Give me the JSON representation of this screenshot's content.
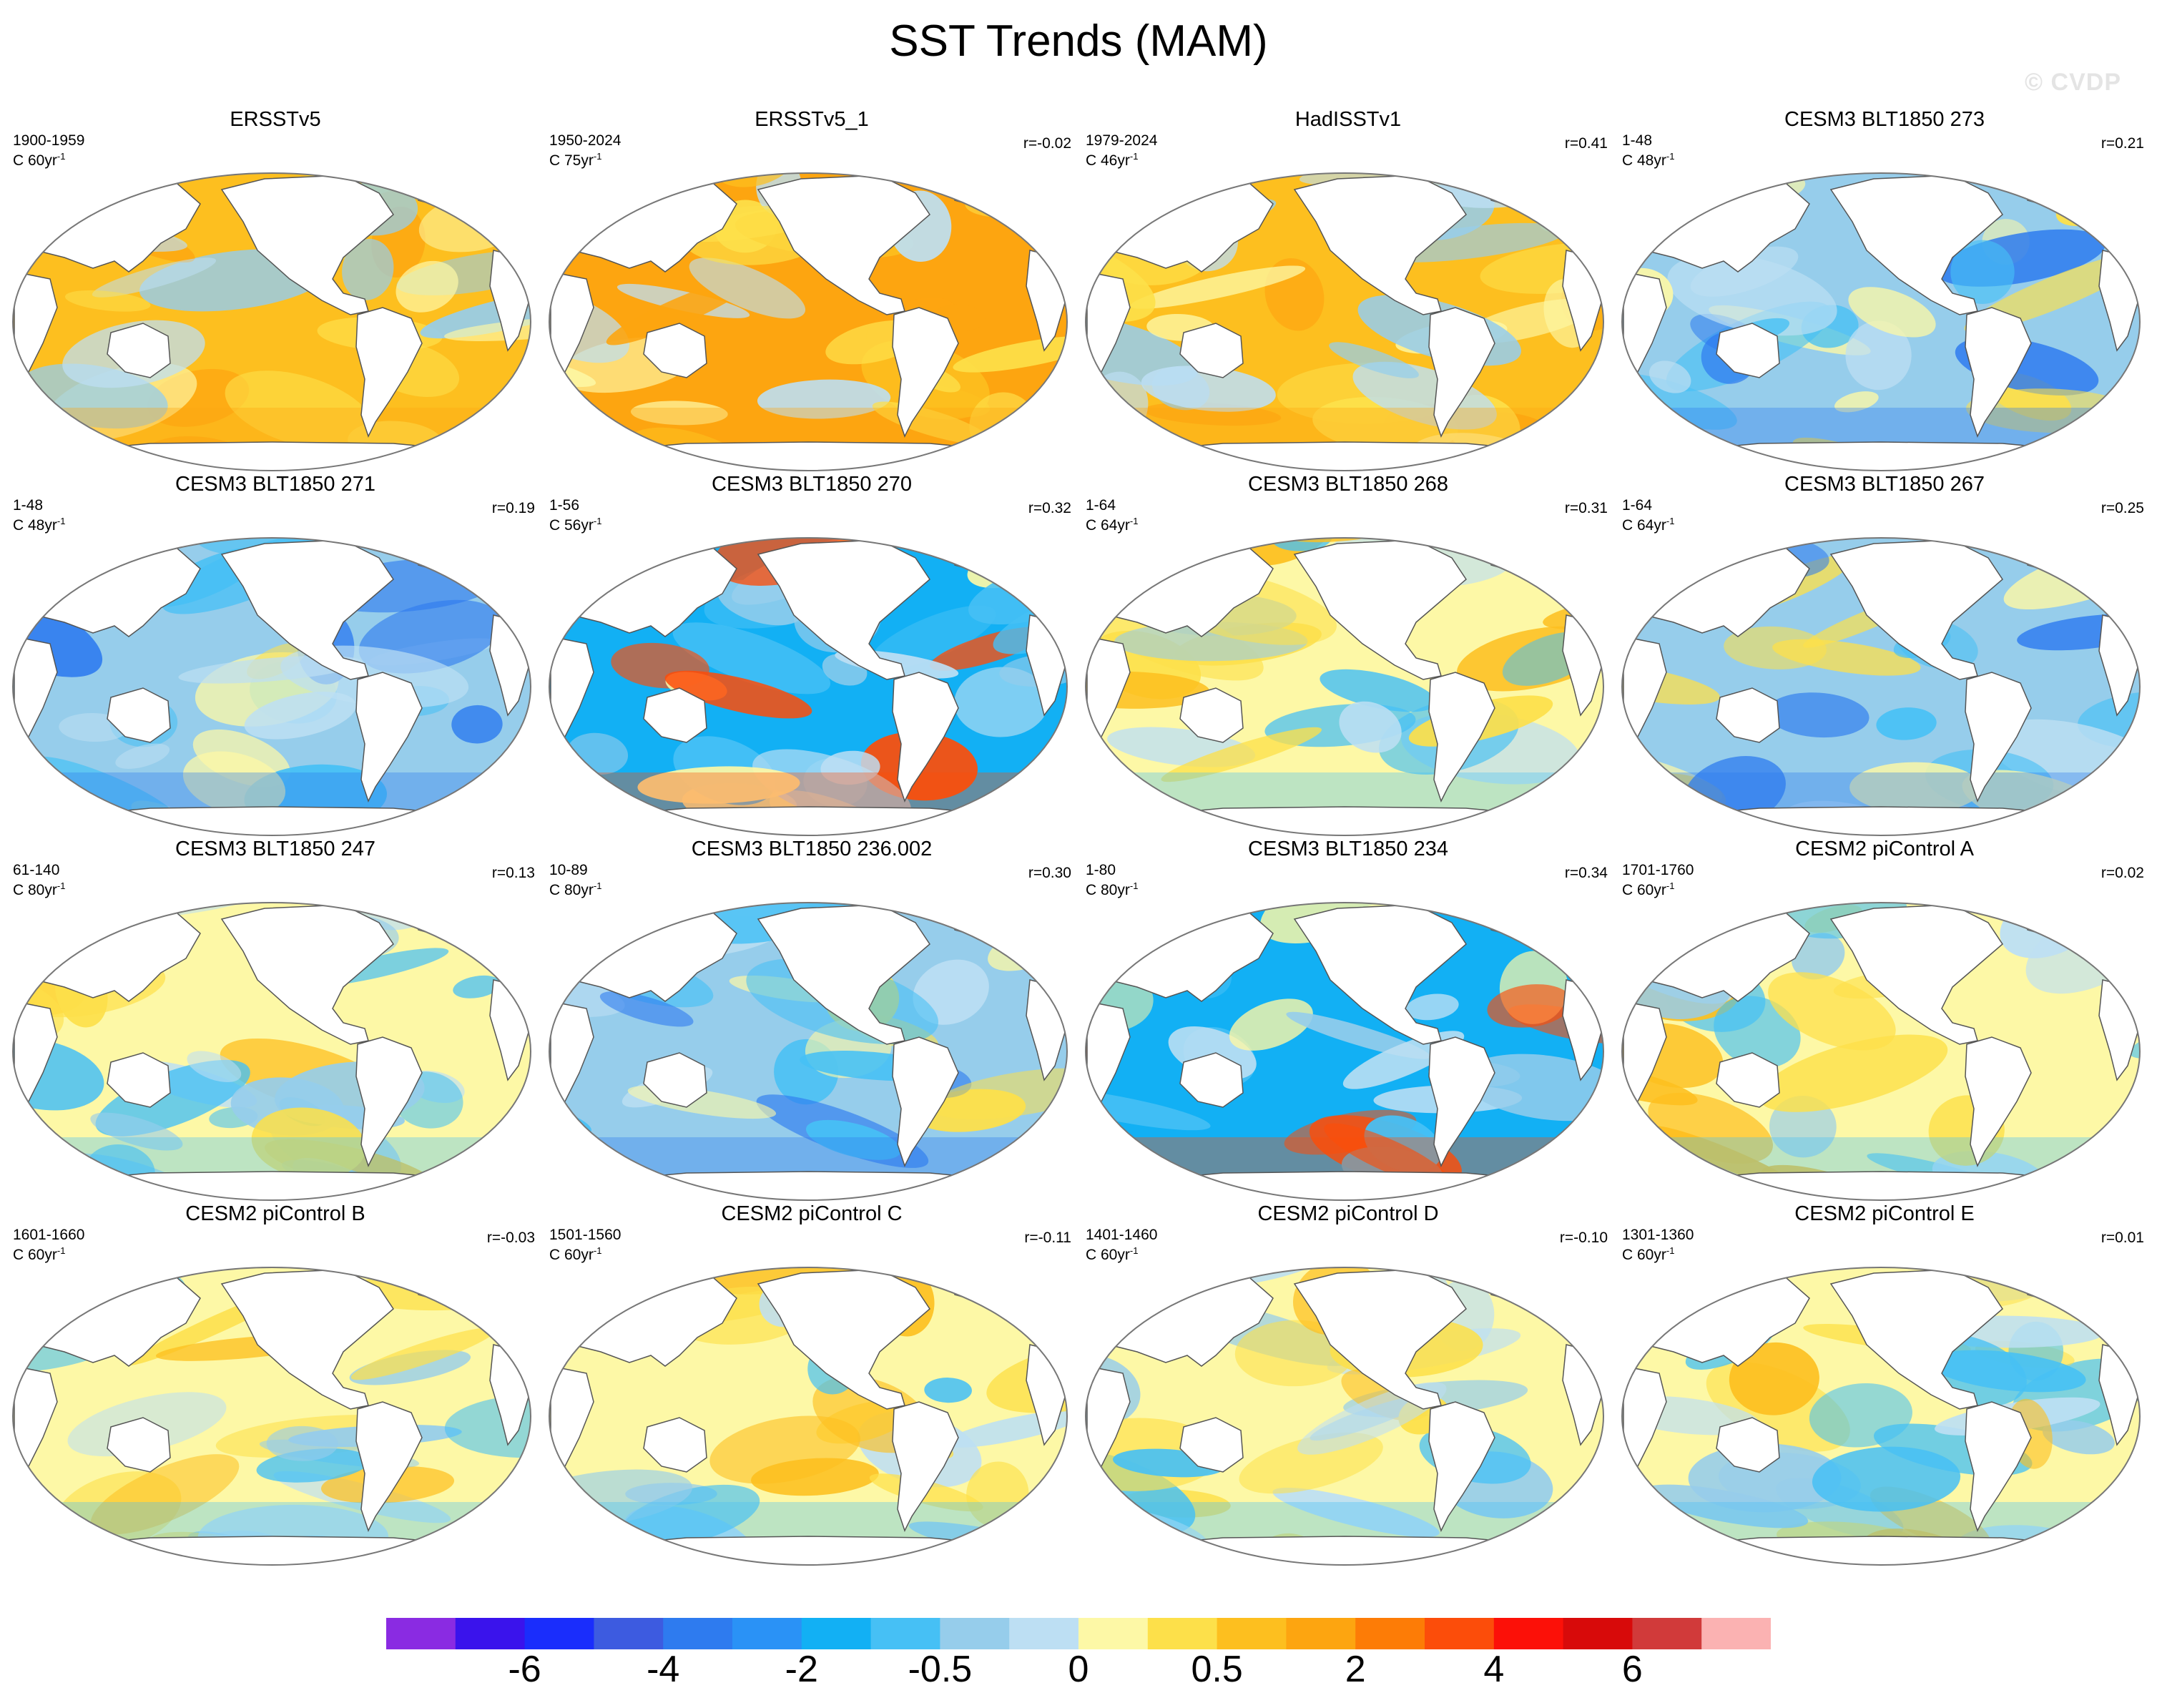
{
  "title": "SST Trends (MAM)",
  "watermark": "© CVDP",
  "panels": [
    {
      "title": "ERSSTv5",
      "years": "1900-1959",
      "rate": "C 60yr",
      "rate_unit": "-1",
      "r": "",
      "style": "warm"
    },
    {
      "title": "ERSSTv5_1",
      "years": "1950-2024",
      "rate": "C 75yr",
      "rate_unit": "-1",
      "r": "r=-0.02",
      "style": "hot"
    },
    {
      "title": "HadISSTv1",
      "years": "1979-2024",
      "rate": "C 46yr",
      "rate_unit": "-1",
      "r": "r=0.41",
      "style": "warm"
    },
    {
      "title": "CESM3 BLT1850 273",
      "years": "1-48",
      "rate": "C 48yr",
      "rate_unit": "-1",
      "r": "r=0.21",
      "style": "cool"
    },
    {
      "title": "CESM3 BLT1850 271",
      "years": "1-48",
      "rate": "C 48yr",
      "rate_unit": "-1",
      "r": "r=0.19",
      "style": "cool"
    },
    {
      "title": "CESM3 BLT1850 270",
      "years": "1-56",
      "rate": "C 56yr",
      "rate_unit": "-1",
      "r": "r=0.32",
      "style": "cold"
    },
    {
      "title": "CESM3 BLT1850 268",
      "years": "1-64",
      "rate": "C 64yr",
      "rate_unit": "-1",
      "r": "r=0.31",
      "style": "mixed"
    },
    {
      "title": "CESM3 BLT1850 267",
      "years": "1-64",
      "rate": "C 64yr",
      "rate_unit": "-1",
      "r": "r=0.25",
      "style": "cool"
    },
    {
      "title": "CESM3 BLT1850 247",
      "years": "61-140",
      "rate": "C 80yr",
      "rate_unit": "-1",
      "r": "r=0.13",
      "style": "mixed"
    },
    {
      "title": "CESM3 BLT1850 236.002",
      "years": "10-89",
      "rate": "C 80yr",
      "rate_unit": "-1",
      "r": "r=0.30",
      "style": "cool"
    },
    {
      "title": "CESM3 BLT1850 234",
      "years": "1-80",
      "rate": "C 80yr",
      "rate_unit": "-1",
      "r": "r=0.34",
      "style": "cold"
    },
    {
      "title": "CESM2 piControl A",
      "years": "1701-1760",
      "rate": "C 60yr",
      "rate_unit": "-1",
      "r": "r=0.02",
      "style": "mixed"
    },
    {
      "title": "CESM2 piControl B",
      "years": "1601-1660",
      "rate": "C 60yr",
      "rate_unit": "-1",
      "r": "r=-0.03",
      "style": "mixed"
    },
    {
      "title": "CESM2 piControl C",
      "years": "1501-1560",
      "rate": "C 60yr",
      "rate_unit": "-1",
      "r": "r=-0.11",
      "style": "mixed"
    },
    {
      "title": "CESM2 piControl D",
      "years": "1401-1460",
      "rate": "C 60yr",
      "rate_unit": "-1",
      "r": "r=-0.10",
      "style": "mixed"
    },
    {
      "title": "CESM2 piControl E",
      "years": "1301-1360",
      "rate": "C 60yr",
      "rate_unit": "-1",
      "r": "r=0.01",
      "style": "mixed"
    }
  ],
  "colorbar": {
    "colors": [
      "#8a2be2",
      "#3a13ec",
      "#1a2dfc",
      "#3d5be0",
      "#2e7bef",
      "#2a92f6",
      "#12b0f4",
      "#46c0f5",
      "#96cdeb",
      "#bddff3",
      "#fdf8a6",
      "#fde04a",
      "#fdbf1f",
      "#fda510",
      "#fd7c06",
      "#fc4d0a",
      "#fc1008",
      "#d80a0a",
      "#d13a3a",
      "#fbb2b2"
    ],
    "labels": [
      "-6",
      "-4",
      "-2",
      "-0.5",
      "0",
      "0.5",
      "2",
      "4",
      "6"
    ]
  },
  "palettes": {
    "warm": [
      "#fdbf1f",
      "#fde04a",
      "#fdf8a6",
      "#bddff3",
      "#96cdeb",
      "#fda510"
    ],
    "hot": [
      "#fda510",
      "#fdbf1f",
      "#fde04a",
      "#fdf8a6",
      "#bddff3",
      "#fda510"
    ],
    "cool": [
      "#96cdeb",
      "#46c0f5",
      "#bddff3",
      "#fdf8a6",
      "#fde04a",
      "#2e7bef"
    ],
    "cold": [
      "#12b0f4",
      "#46c0f5",
      "#96cdeb",
      "#bddff3",
      "#fdf8a6",
      "#fc4d0a"
    ],
    "mixed": [
      "#fdf8a6",
      "#bddff3",
      "#fde04a",
      "#96cdeb",
      "#fdbf1f",
      "#46c0f5"
    ]
  }
}
